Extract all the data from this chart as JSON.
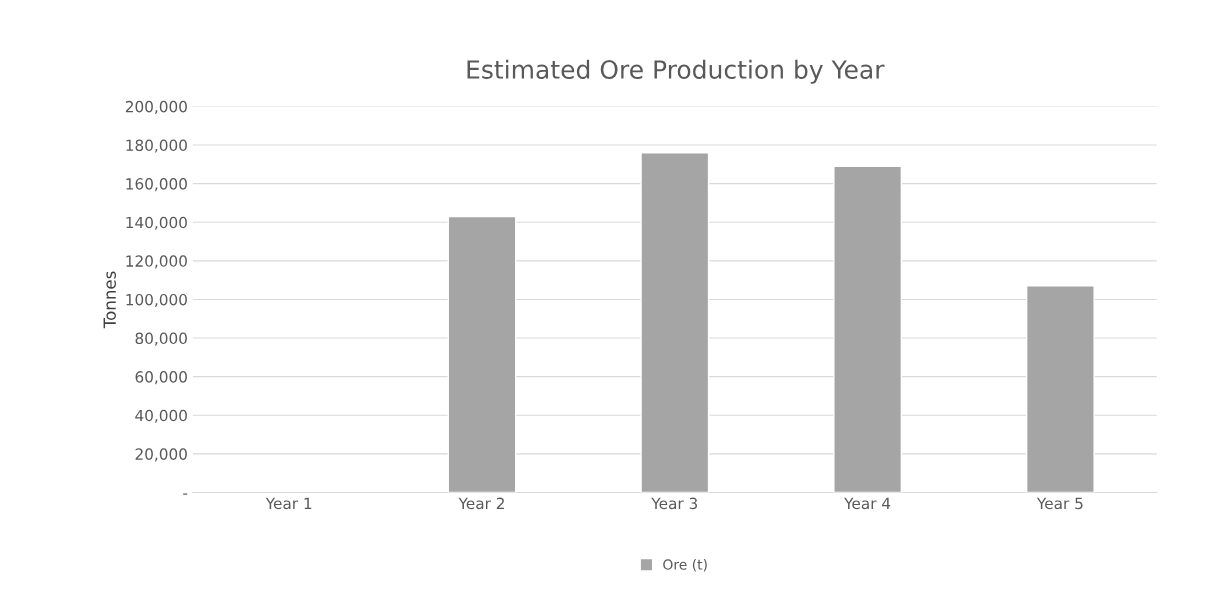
{
  "chart_data": {
    "type": "bar",
    "title": "Estimated Ore Production by Year",
    "ylabel": "Tonnes",
    "categories": [
      "Year 1",
      "Year 2",
      "Year 3",
      "Year 4",
      "Year 5"
    ],
    "series": [
      {
        "name": "Ore (t)",
        "color": "#a5a5a5",
        "values": [
          null,
          143000,
          176000,
          169000,
          107000
        ]
      }
    ],
    "ylim": [
      0,
      200000
    ],
    "yticks": [
      {
        "value": 0,
        "label": "-"
      },
      {
        "value": 20000,
        "label": "20,000"
      },
      {
        "value": 40000,
        "label": "40,000"
      },
      {
        "value": 60000,
        "label": "60,000"
      },
      {
        "value": 80000,
        "label": "80,000"
      },
      {
        "value": 100000,
        "label": "100,000"
      },
      {
        "value": 120000,
        "label": "120,000"
      },
      {
        "value": 140000,
        "label": "140,000"
      },
      {
        "value": 160000,
        "label": "160,000"
      },
      {
        "value": 180000,
        "label": "180,000"
      },
      {
        "value": 200000,
        "label": "200,000"
      }
    ],
    "grid": "y",
    "legend": "bottom"
  }
}
